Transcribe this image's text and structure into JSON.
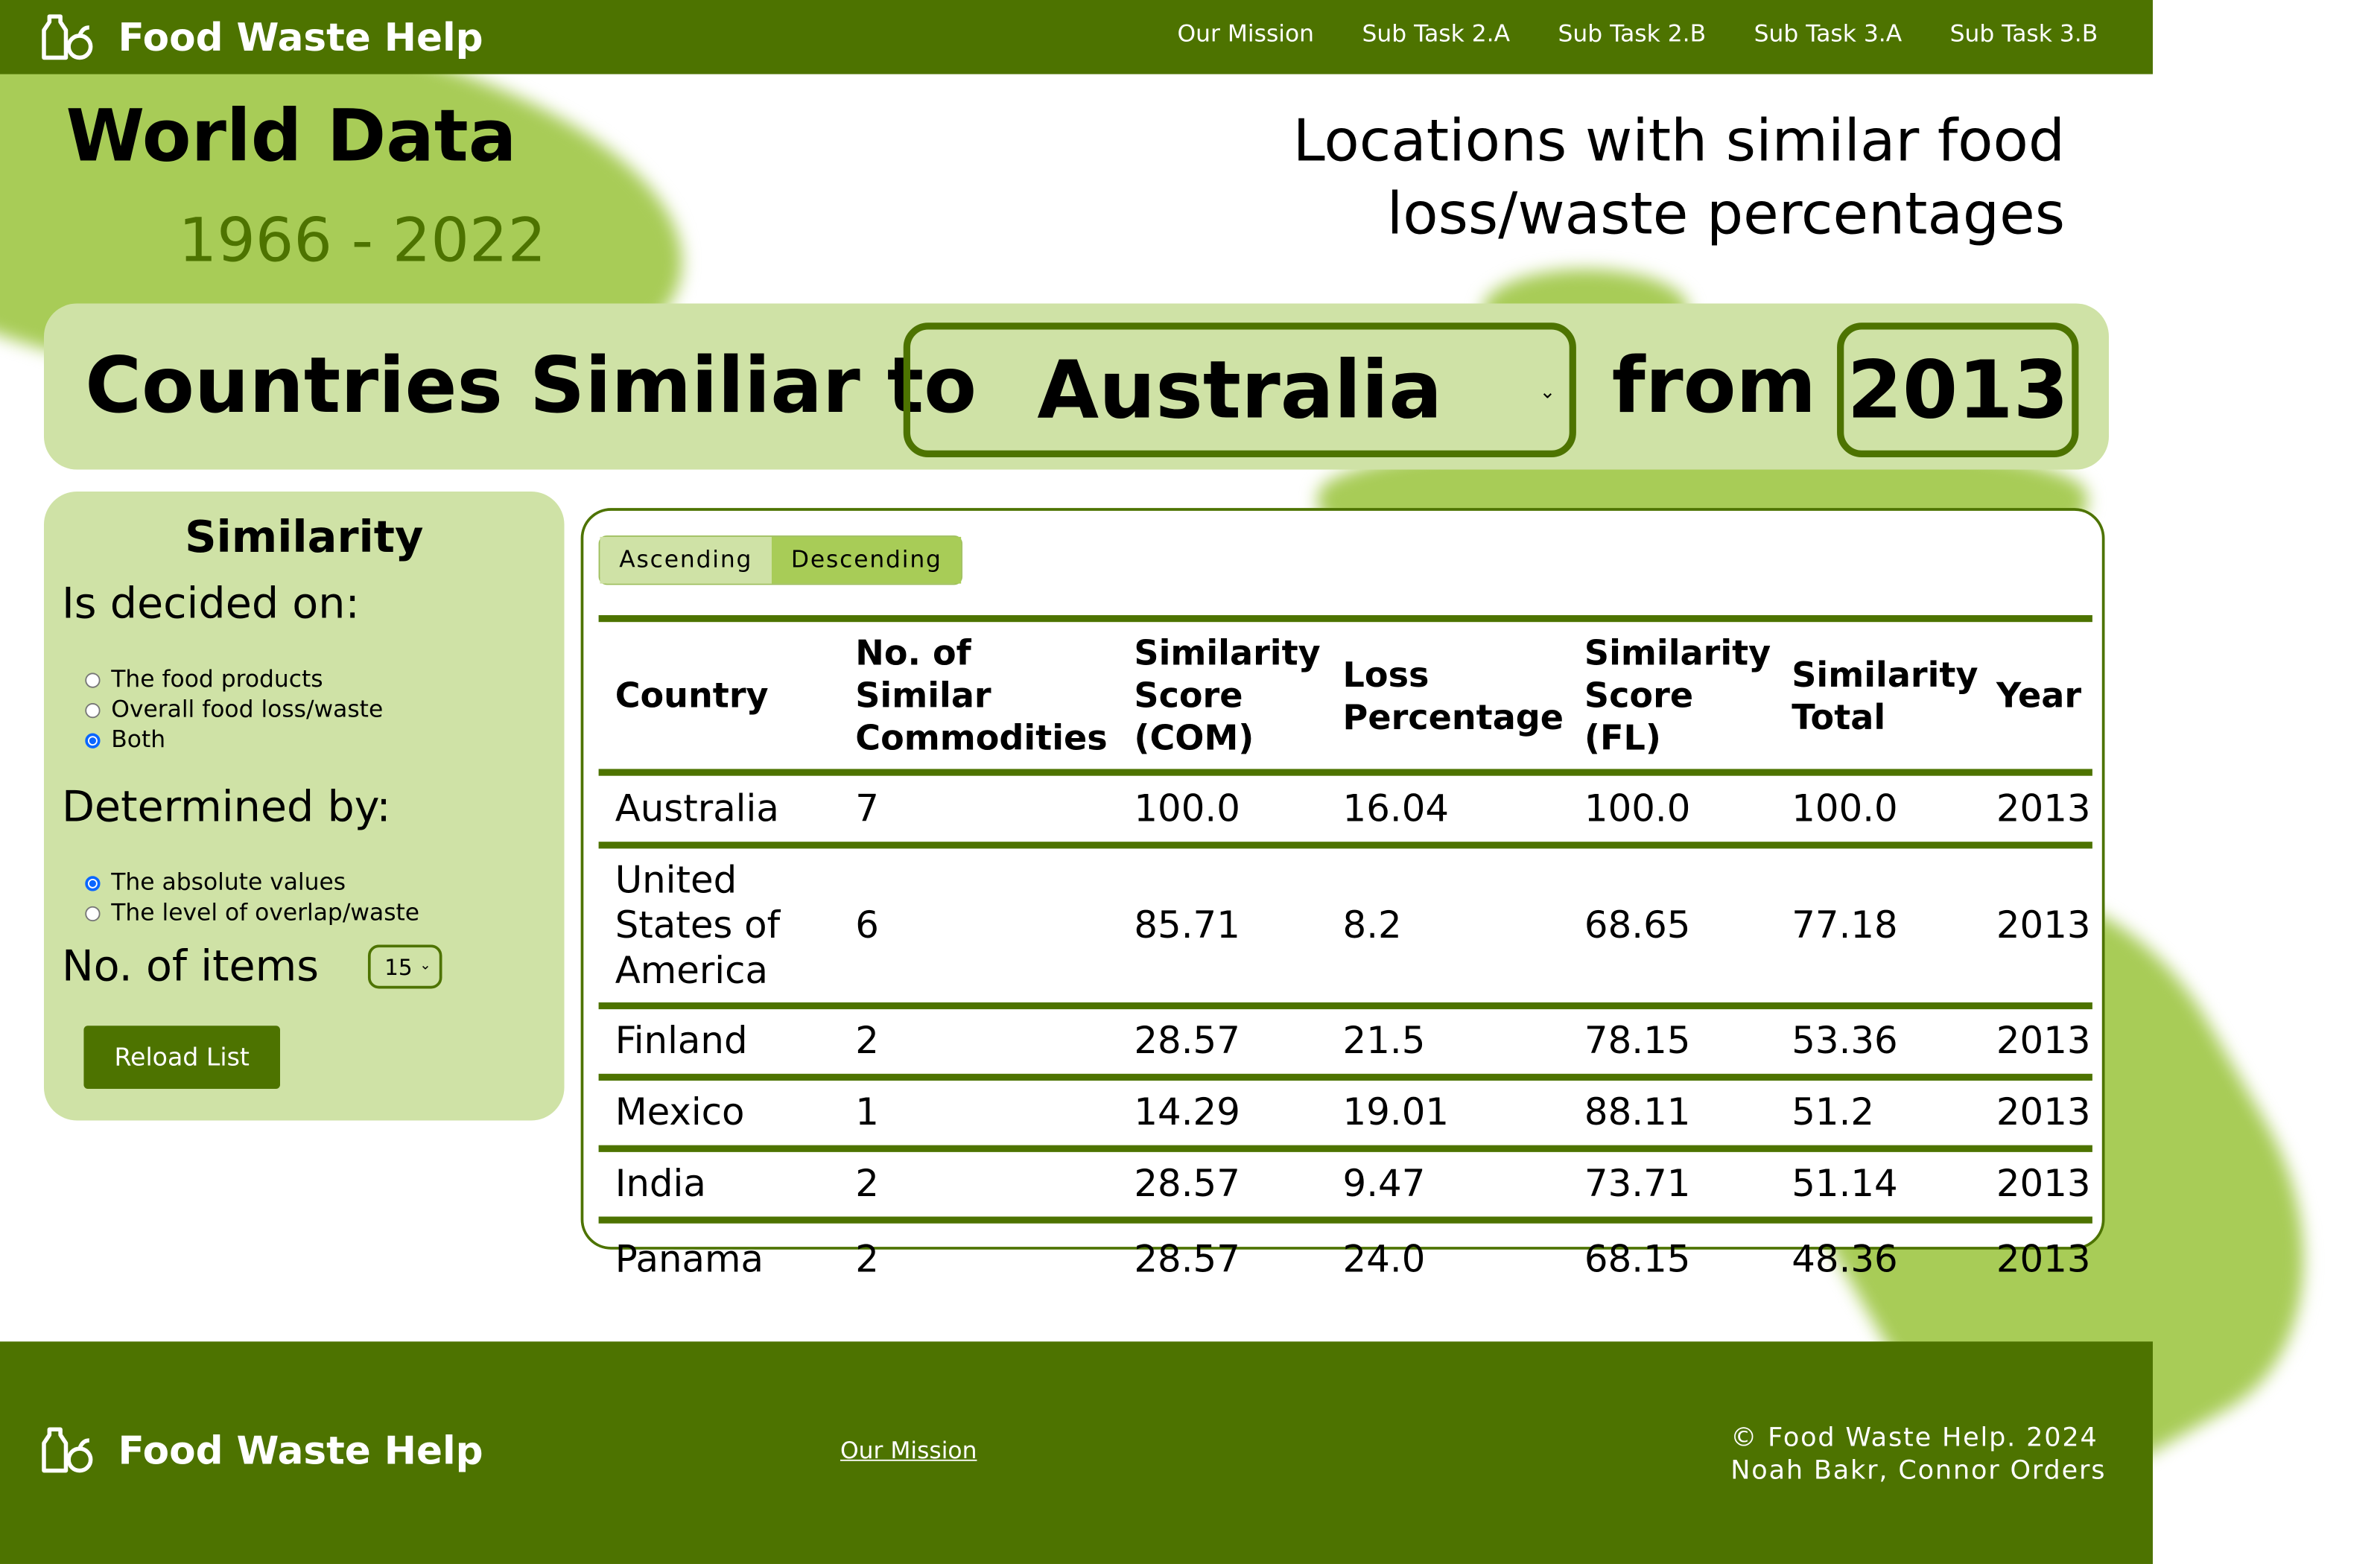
{
  "header": {
    "brand": "Food Waste Help",
    "nav": [
      "Our Mission",
      "Sub Task 2.A",
      "Sub Task 2.B",
      "Sub Task 3.A",
      "Sub Task 3.B"
    ]
  },
  "hero": {
    "title": "World Data",
    "years": "1966 - 2022",
    "subtitle": "Locations with similar food loss/waste percentages"
  },
  "banner": {
    "label": "Countries Similiar to",
    "country": "Australia",
    "from_label": "from",
    "year": "2013"
  },
  "panel": {
    "title": "Similarity",
    "decided_label": "Is decided on:",
    "decided_options": [
      "The food products",
      "Overall food loss/waste",
      "Both"
    ],
    "decided_selected": "Both",
    "determined_label": "Determined by:",
    "determined_options": [
      "The absolute values",
      "The level of overlap/waste"
    ],
    "determined_selected": "The absolute values",
    "items_label": "No. of items",
    "items_value": "15",
    "reload_label": "Reload List"
  },
  "sort": {
    "ascending": "Ascending",
    "descending": "Descending",
    "active": "Descending"
  },
  "table": {
    "headers": [
      "Country",
      "No. of Similar Commodities",
      "Similarity Score (COM)",
      "Loss Percentage",
      "Similarity Score (FL)",
      "Similarity Total",
      "Year"
    ],
    "rows": [
      [
        "Australia",
        "7",
        "100.0",
        "16.04",
        "100.0",
        "100.0",
        "2013"
      ],
      [
        "United States of America",
        "6",
        "85.71",
        "8.2",
        "68.65",
        "77.18",
        "2013"
      ],
      [
        "Finland",
        "2",
        "28.57",
        "21.5",
        "78.15",
        "53.36",
        "2013"
      ],
      [
        "Mexico",
        "1",
        "14.29",
        "19.01",
        "88.11",
        "51.2",
        "2013"
      ],
      [
        "India",
        "2",
        "28.57",
        "9.47",
        "73.71",
        "51.14",
        "2013"
      ],
      [
        "Panama",
        "2",
        "28.57",
        "24.0",
        "68.15",
        "48.36",
        "2013"
      ]
    ]
  },
  "footer": {
    "brand": "Food Waste Help",
    "link": "Our Mission",
    "copyright": "© Food Waste Help. 2024",
    "authors": "Noah Bakr, Connor Orders"
  }
}
